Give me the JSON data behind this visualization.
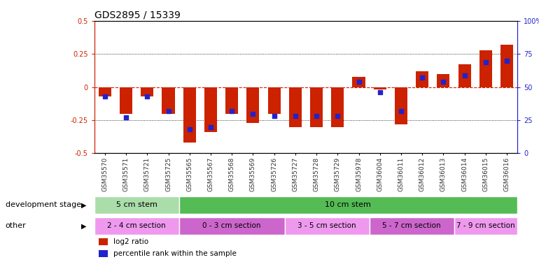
{
  "title": "GDS2895 / 15339",
  "samples": [
    "GSM35570",
    "GSM35571",
    "GSM35721",
    "GSM35725",
    "GSM35565",
    "GSM35567",
    "GSM35568",
    "GSM35569",
    "GSM35726",
    "GSM35727",
    "GSM35728",
    "GSM35729",
    "GSM35978",
    "GSM36004",
    "GSM36011",
    "GSM36012",
    "GSM36013",
    "GSM36014",
    "GSM36015",
    "GSM36016"
  ],
  "log2_ratio": [
    -0.07,
    -0.2,
    -0.07,
    -0.2,
    -0.42,
    -0.34,
    -0.2,
    -0.27,
    -0.2,
    -0.3,
    -0.3,
    -0.3,
    0.08,
    -0.02,
    -0.28,
    0.12,
    0.1,
    0.17,
    0.28,
    0.32
  ],
  "percentile": [
    43,
    27,
    43,
    32,
    18,
    20,
    32,
    30,
    28,
    28,
    28,
    28,
    54,
    46,
    32,
    57,
    54,
    59,
    69,
    70
  ],
  "bar_color": "#cc2200",
  "dot_color": "#2222cc",
  "bg_color": "#ffffff",
  "ylim": [
    -0.5,
    0.5
  ],
  "y2lim": [
    0,
    100
  ],
  "dev_stage_groups": [
    {
      "label": "5 cm stem",
      "start": 0,
      "end": 4,
      "color": "#aaddaa"
    },
    {
      "label": "10 cm stem",
      "start": 4,
      "end": 20,
      "color": "#55bb55"
    }
  ],
  "other_groups": [
    {
      "label": "2 - 4 cm section",
      "start": 0,
      "end": 4,
      "color": "#ee99ee"
    },
    {
      "label": "0 - 3 cm section",
      "start": 4,
      "end": 9,
      "color": "#cc66cc"
    },
    {
      "label": "3 - 5 cm section",
      "start": 9,
      "end": 13,
      "color": "#ee99ee"
    },
    {
      "label": "5 - 7 cm section",
      "start": 13,
      "end": 17,
      "color": "#cc66cc"
    },
    {
      "label": "7 - 9 cm section",
      "start": 17,
      "end": 20,
      "color": "#ee99ee"
    }
  ],
  "legend": [
    {
      "label": "log2 ratio",
      "color": "#cc2200"
    },
    {
      "label": "percentile rank within the sample",
      "color": "#2222cc"
    }
  ],
  "dev_stage_label": "development stage",
  "other_label": "other",
  "bar_width": 0.6,
  "tick_label_fontsize": 6.5,
  "title_fontsize": 10
}
